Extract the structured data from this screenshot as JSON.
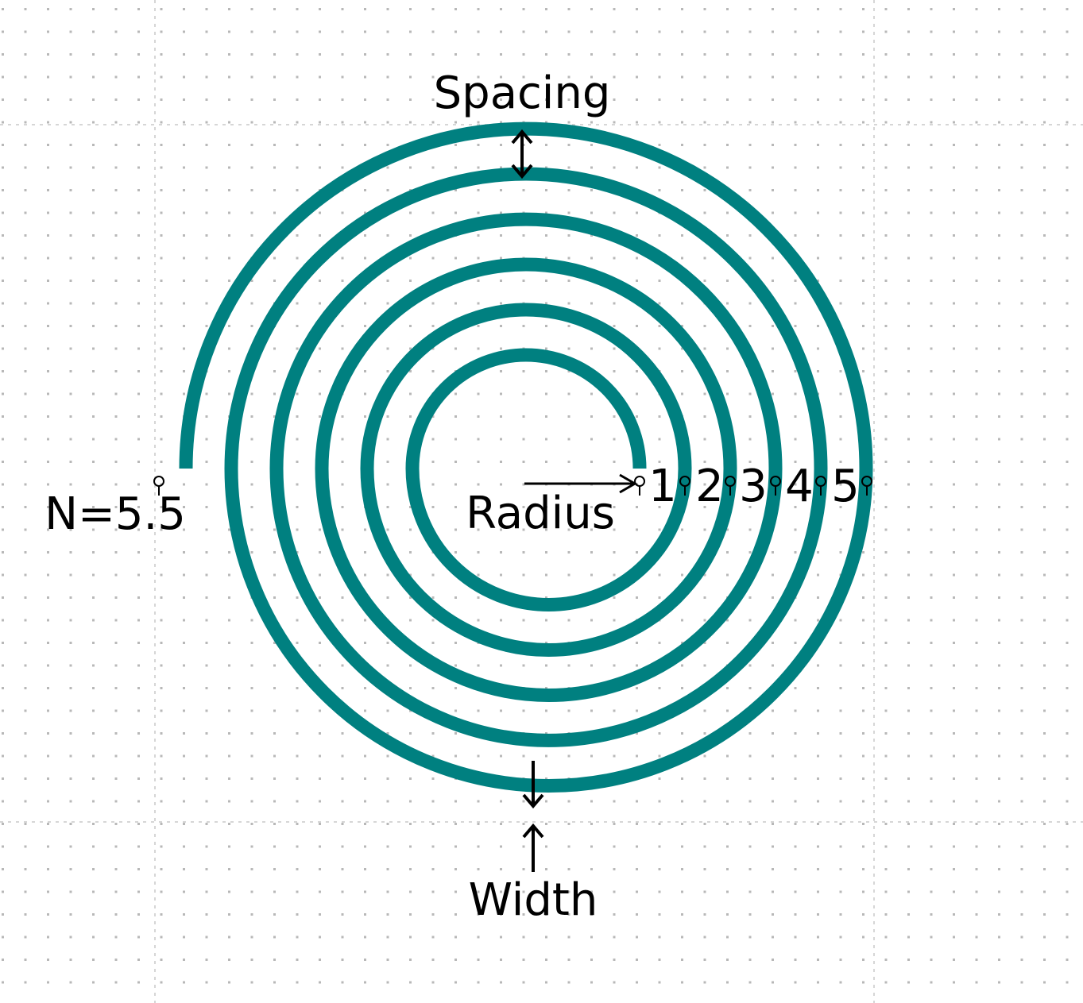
{
  "diagram": {
    "labels": {
      "spacing": "Spacing",
      "radius": "Radius",
      "width": "Width",
      "turns": "N=5.5"
    },
    "turn_numbers": [
      "1",
      "2",
      "3",
      "4",
      "5"
    ],
    "coil": {
      "turns": 5.5,
      "color": "#008080"
    },
    "grid": {
      "dot_color": "#b8b8b8",
      "line_color": "#c8c8c8"
    }
  }
}
